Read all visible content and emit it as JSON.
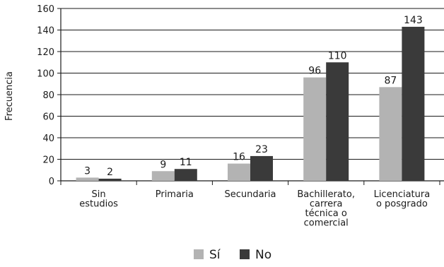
{
  "chart_data": {
    "type": "bar",
    "title": "",
    "ylabel": "Frecuencia",
    "xlabel": "",
    "ylim": [
      0,
      160
    ],
    "yticks": [
      0,
      20,
      40,
      60,
      80,
      100,
      120,
      140,
      160
    ],
    "grid": true,
    "legend_position": "bottom",
    "categories": [
      [
        "Sin",
        "estudios"
      ],
      [
        "Primaria"
      ],
      [
        "Secundaria"
      ],
      [
        "Bachillerato,",
        "carrera",
        "técnica o",
        "comercial"
      ],
      [
        "Licenciatura",
        "o posgrado"
      ]
    ],
    "series": [
      {
        "name": "Sí",
        "color": "#b3b3b3",
        "values": [
          3,
          9,
          16,
          96,
          87
        ]
      },
      {
        "name": "No",
        "color": "#3a3a3a",
        "values": [
          2,
          11,
          23,
          110,
          143
        ]
      }
    ]
  }
}
